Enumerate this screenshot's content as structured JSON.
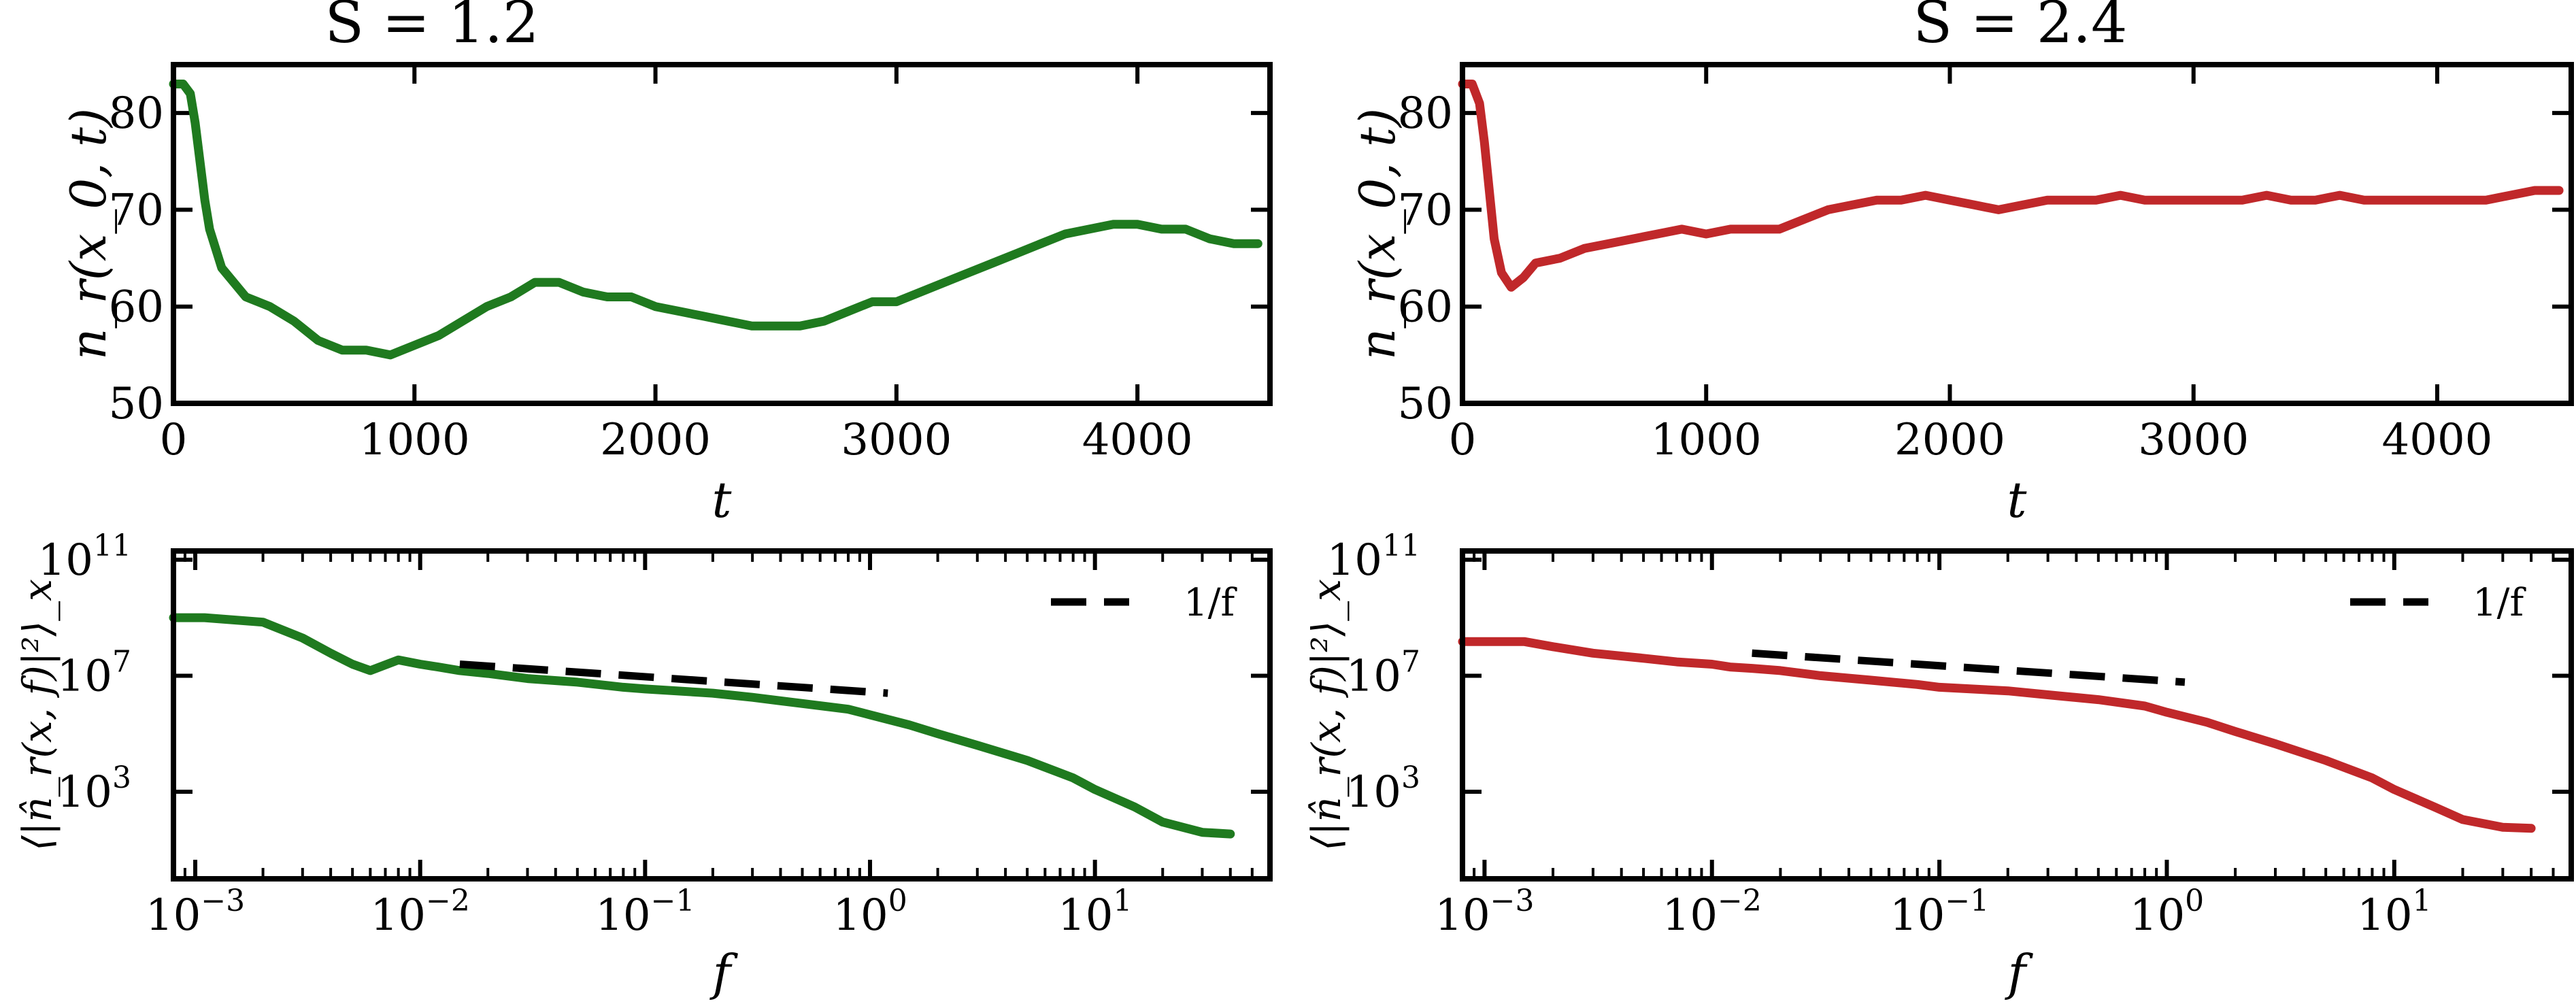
{
  "chart_data": [
    {
      "type": "line",
      "title": "S = 1.2",
      "xlabel": "t",
      "ylabel": "n_r(x_0, t)",
      "xlim": [
        0,
        4550
      ],
      "ylim": [
        50,
        85
      ],
      "x_ticks": [
        "0",
        "1000",
        "2000",
        "3000",
        "4000"
      ],
      "y_ticks": [
        "50",
        "60",
        "70",
        "80"
      ],
      "color": "#1f7a1f",
      "series": [
        {
          "x": [
            0,
            40,
            70,
            90,
            110,
            130,
            150,
            200,
            300,
            400,
            500,
            600,
            700,
            800,
            900,
            1000,
            1100,
            1200,
            1300,
            1400,
            1500,
            1600,
            1700,
            1800,
            1900,
            2000,
            2100,
            2200,
            2300,
            2400,
            2500,
            2600,
            2700,
            2800,
            2900,
            3000,
            3100,
            3200,
            3300,
            3400,
            3500,
            3600,
            3700,
            3800,
            3900,
            4000,
            4100,
            4200,
            4300,
            4400,
            4500
          ],
          "y": [
            83,
            83,
            82,
            79,
            75,
            71,
            68,
            64,
            61,
            60,
            58.5,
            56.5,
            55.5,
            55.5,
            55,
            56,
            57,
            58.5,
            60,
            61,
            62.5,
            62.5,
            61.5,
            61,
            61,
            60,
            59.5,
            59,
            58.5,
            58,
            58,
            58,
            58.5,
            59.5,
            60.5,
            60.5,
            61.5,
            62.5,
            63.5,
            64.5,
            65.5,
            66.5,
            67.5,
            68,
            68.5,
            68.5,
            68,
            68,
            67,
            66.5,
            66.5
          ]
        }
      ]
    },
    {
      "type": "line",
      "title": "S = 2.4",
      "xlabel": "t",
      "ylabel": "n_r(x_0, t)",
      "xlim": [
        0,
        4550
      ],
      "ylim": [
        50,
        85
      ],
      "x_ticks": [
        "0",
        "1000",
        "2000",
        "3000",
        "4000"
      ],
      "y_ticks": [
        "50",
        "60",
        "70",
        "80"
      ],
      "color": "#c0282a",
      "series": [
        {
          "x": [
            0,
            40,
            70,
            90,
            110,
            130,
            160,
            200,
            250,
            300,
            400,
            500,
            600,
            700,
            800,
            900,
            1000,
            1100,
            1200,
            1300,
            1400,
            1500,
            1600,
            1700,
            1800,
            1900,
            2000,
            2100,
            2200,
            2300,
            2400,
            2500,
            2600,
            2700,
            2800,
            2900,
            3000,
            3100,
            3200,
            3300,
            3400,
            3500,
            3600,
            3700,
            3800,
            3900,
            4000,
            4100,
            4200,
            4300,
            4400,
            4500
          ],
          "y": [
            83,
            83,
            81,
            77,
            72,
            67,
            63.5,
            62,
            63,
            64.5,
            65,
            66,
            66.5,
            67,
            67.5,
            68,
            67.5,
            68,
            68,
            68,
            69,
            70,
            70.5,
            71,
            71,
            71.5,
            71,
            70.5,
            70,
            70.5,
            71,
            71,
            71,
            71.5,
            71,
            71,
            71,
            71,
            71,
            71.5,
            71,
            71,
            71.5,
            71,
            71,
            71,
            71,
            71,
            71,
            71.5,
            72,
            72
          ]
        }
      ]
    },
    {
      "type": "line",
      "xlabel": "f",
      "ylabel": "⟨|n̂_r(x, f)|²⟩_x",
      "x_scale": "log",
      "y_scale": "log",
      "xlim": [
        0.0008,
        60
      ],
      "ylim": [
        1,
        200000000000
      ],
      "x_ticks": [
        "10^-3",
        "10^-2",
        "10^-1",
        "10^0",
        "10^1"
      ],
      "y_ticks": [
        "10^3",
        "10^7",
        "10^11"
      ],
      "color": "#1f7a1f",
      "legend": {
        "label": "1/f",
        "position": "top-right"
      },
      "series": [
        {
          "x": [
            0.0008,
            0.0011,
            0.002,
            0.003,
            0.004,
            0.005,
            0.006,
            0.008,
            0.01,
            0.012,
            0.015,
            0.02,
            0.03,
            0.05,
            0.08,
            0.1,
            0.2,
            0.3,
            0.5,
            0.8,
            1,
            1.5,
            2,
            3,
            5,
            8,
            10,
            15,
            20,
            30,
            40
          ],
          "y": [
            1000000000,
            1000000000,
            700000000,
            200000000,
            60000000,
            25000000,
            15000000,
            35000000,
            25000000,
            20000000,
            15000000,
            12000000,
            8000000,
            6000000,
            4000000,
            3500000,
            2500000,
            1800000,
            1100000,
            700000,
            450000,
            200000,
            100000,
            40000,
            12000,
            3000,
            1200,
            300,
            90,
            40,
            35
          ]
        }
      ],
      "reference": {
        "label": "1/f",
        "x": [
          0.015,
          1.2
        ],
        "y": [
          25000000,
          2500000
        ]
      }
    },
    {
      "type": "line",
      "xlabel": "f",
      "ylabel": "⟨|n̂_r(x, f)|²⟩_x",
      "x_scale": "log",
      "y_scale": "log",
      "xlim": [
        0.0008,
        60
      ],
      "ylim": [
        1,
        200000000000
      ],
      "x_ticks": [
        "10^-3",
        "10^-2",
        "10^-1",
        "10^0",
        "10^1"
      ],
      "y_ticks": [
        "10^3",
        "10^7",
        "10^11"
      ],
      "color": "#c0282a",
      "legend": {
        "label": "1/f",
        "position": "top-right"
      },
      "series": [
        {
          "x": [
            0.0008,
            0.0015,
            0.002,
            0.003,
            0.005,
            0.007,
            0.01,
            0.012,
            0.015,
            0.02,
            0.03,
            0.05,
            0.08,
            0.1,
            0.2,
            0.3,
            0.5,
            0.8,
            1,
            1.5,
            2,
            3,
            5,
            8,
            10,
            15,
            20,
            30,
            40
          ],
          "y": [
            150000000,
            150000000,
            100000000,
            60000000,
            40000000,
            30000000,
            25000000,
            20000000,
            18000000,
            15000000,
            10000000,
            7000000,
            5000000,
            4000000,
            3000000,
            2200000,
            1500000,
            900000,
            550000,
            250000,
            120000,
            45000,
            12000,
            3000,
            1200,
            300,
            110,
            60,
            55
          ]
        }
      ],
      "reference": {
        "label": "1/f",
        "x": [
          0.015,
          1.2
        ],
        "y": [
          60000000,
          6000000
        ]
      }
    }
  ]
}
